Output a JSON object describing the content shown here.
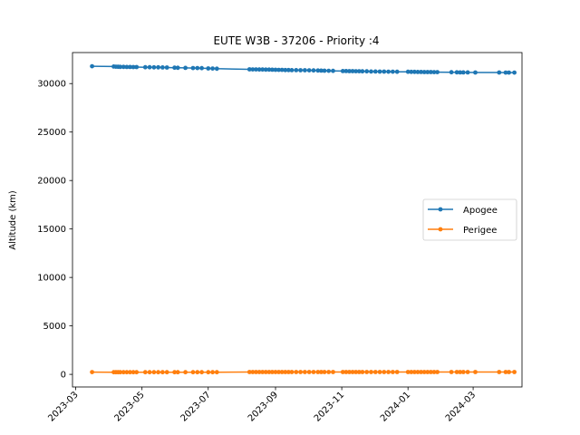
{
  "chart_data": {
    "type": "line",
    "title": "EUTE W3B - 37206 - Priority :4",
    "xlabel": "",
    "ylabel": "Altitude (km)",
    "x_ticks": [
      "2023-03",
      "2023-05",
      "2023-07",
      "2023-09",
      "2023-11",
      "2024-01",
      "2024-03"
    ],
    "y_ticks": [
      0,
      5000,
      10000,
      15000,
      20000,
      25000,
      30000
    ],
    "xlim": [
      "2023-02-26",
      "2024-04-15"
    ],
    "ylim": [
      -1300,
      33200
    ],
    "grid": false,
    "legend_position": "center-right",
    "series": [
      {
        "name": "Apogee",
        "color": "#1f77b4",
        "points": [
          [
            "2023-03-16",
            31790
          ],
          [
            "2023-04-05",
            31760
          ],
          [
            "2023-04-07",
            31740
          ],
          [
            "2023-04-09",
            31730
          ],
          [
            "2023-04-11",
            31720
          ],
          [
            "2023-04-14",
            31720
          ],
          [
            "2023-04-17",
            31710
          ],
          [
            "2023-04-20",
            31710
          ],
          [
            "2023-04-23",
            31700
          ],
          [
            "2023-04-26",
            31700
          ],
          [
            "2023-05-04",
            31690
          ],
          [
            "2023-05-08",
            31690
          ],
          [
            "2023-05-12",
            31680
          ],
          [
            "2023-05-16",
            31680
          ],
          [
            "2023-05-20",
            31670
          ],
          [
            "2023-05-24",
            31660
          ],
          [
            "2023-05-31",
            31640
          ],
          [
            "2023-06-03",
            31630
          ],
          [
            "2023-06-10",
            31620
          ],
          [
            "2023-06-17",
            31600
          ],
          [
            "2023-06-21",
            31600
          ],
          [
            "2023-06-25",
            31590
          ],
          [
            "2023-07-01",
            31560
          ],
          [
            "2023-07-05",
            31550
          ],
          [
            "2023-07-09",
            31540
          ],
          [
            "2023-08-08",
            31470
          ],
          [
            "2023-08-11",
            31460
          ],
          [
            "2023-08-14",
            31460
          ],
          [
            "2023-08-17",
            31450
          ],
          [
            "2023-08-20",
            31450
          ],
          [
            "2023-08-23",
            31440
          ],
          [
            "2023-08-26",
            31440
          ],
          [
            "2023-08-29",
            31430
          ],
          [
            "2023-09-01",
            31420
          ],
          [
            "2023-09-04",
            31410
          ],
          [
            "2023-09-07",
            31410
          ],
          [
            "2023-09-10",
            31400
          ],
          [
            "2023-09-13",
            31400
          ],
          [
            "2023-09-16",
            31390
          ],
          [
            "2023-09-20",
            31390
          ],
          [
            "2023-09-24",
            31380
          ],
          [
            "2023-09-28",
            31380
          ],
          [
            "2023-10-02",
            31370
          ],
          [
            "2023-10-06",
            31360
          ],
          [
            "2023-10-10",
            31350
          ],
          [
            "2023-10-13",
            31340
          ],
          [
            "2023-10-16",
            31330
          ],
          [
            "2023-10-20",
            31320
          ],
          [
            "2023-10-24",
            31310
          ],
          [
            "2023-11-02",
            31290
          ],
          [
            "2023-11-05",
            31290
          ],
          [
            "2023-11-08",
            31280
          ],
          [
            "2023-11-11",
            31280
          ],
          [
            "2023-11-14",
            31270
          ],
          [
            "2023-11-17",
            31270
          ],
          [
            "2023-11-20",
            31260
          ],
          [
            "2023-11-24",
            31260
          ],
          [
            "2023-11-28",
            31250
          ],
          [
            "2023-12-02",
            31250
          ],
          [
            "2023-12-06",
            31240
          ],
          [
            "2023-12-10",
            31240
          ],
          [
            "2023-12-14",
            31230
          ],
          [
            "2023-12-18",
            31230
          ],
          [
            "2023-12-22",
            31220
          ],
          [
            "2024-01-01",
            31220
          ],
          [
            "2024-01-04",
            31210
          ],
          [
            "2024-01-07",
            31210
          ],
          [
            "2024-01-10",
            31200
          ],
          [
            "2024-01-13",
            31200
          ],
          [
            "2024-01-16",
            31190
          ],
          [
            "2024-01-19",
            31190
          ],
          [
            "2024-01-22",
            31190
          ],
          [
            "2024-01-25",
            31180
          ],
          [
            "2024-01-28",
            31180
          ],
          [
            "2024-02-10",
            31170
          ],
          [
            "2024-02-15",
            31160
          ],
          [
            "2024-02-18",
            31150
          ],
          [
            "2024-02-21",
            31150
          ],
          [
            "2024-02-25",
            31150
          ],
          [
            "2024-03-03",
            31140
          ],
          [
            "2024-03-25",
            31140
          ],
          [
            "2024-03-31",
            31130
          ],
          [
            "2024-04-03",
            31130
          ],
          [
            "2024-04-08",
            31130
          ]
        ]
      },
      {
        "name": "Perigee",
        "color": "#ff7f0e",
        "points": [
          [
            "2023-03-16",
            230
          ],
          [
            "2023-04-05",
            220
          ],
          [
            "2023-04-07",
            220
          ],
          [
            "2023-04-09",
            220
          ],
          [
            "2023-04-11",
            220
          ],
          [
            "2023-04-14",
            220
          ],
          [
            "2023-04-17",
            220
          ],
          [
            "2023-04-20",
            220
          ],
          [
            "2023-04-23",
            220
          ],
          [
            "2023-04-26",
            220
          ],
          [
            "2023-05-04",
            220
          ],
          [
            "2023-05-08",
            220
          ],
          [
            "2023-05-12",
            220
          ],
          [
            "2023-05-16",
            220
          ],
          [
            "2023-05-20",
            220
          ],
          [
            "2023-05-24",
            220
          ],
          [
            "2023-05-31",
            220
          ],
          [
            "2023-06-03",
            220
          ],
          [
            "2023-06-10",
            220
          ],
          [
            "2023-06-17",
            220
          ],
          [
            "2023-06-21",
            220
          ],
          [
            "2023-06-25",
            220
          ],
          [
            "2023-07-01",
            220
          ],
          [
            "2023-07-05",
            220
          ],
          [
            "2023-07-09",
            220
          ],
          [
            "2023-08-08",
            240
          ],
          [
            "2023-08-11",
            240
          ],
          [
            "2023-08-14",
            240
          ],
          [
            "2023-08-17",
            240
          ],
          [
            "2023-08-20",
            240
          ],
          [
            "2023-08-23",
            240
          ],
          [
            "2023-08-26",
            240
          ],
          [
            "2023-08-29",
            240
          ],
          [
            "2023-09-01",
            240
          ],
          [
            "2023-09-04",
            240
          ],
          [
            "2023-09-07",
            240
          ],
          [
            "2023-09-10",
            240
          ],
          [
            "2023-09-13",
            240
          ],
          [
            "2023-09-16",
            240
          ],
          [
            "2023-09-20",
            240
          ],
          [
            "2023-09-24",
            240
          ],
          [
            "2023-09-28",
            240
          ],
          [
            "2023-10-02",
            240
          ],
          [
            "2023-10-06",
            240
          ],
          [
            "2023-10-10",
            240
          ],
          [
            "2023-10-13",
            240
          ],
          [
            "2023-10-16",
            240
          ],
          [
            "2023-10-20",
            240
          ],
          [
            "2023-10-24",
            240
          ],
          [
            "2023-11-02",
            240
          ],
          [
            "2023-11-05",
            240
          ],
          [
            "2023-11-08",
            240
          ],
          [
            "2023-11-11",
            240
          ],
          [
            "2023-11-14",
            240
          ],
          [
            "2023-11-17",
            240
          ],
          [
            "2023-11-20",
            240
          ],
          [
            "2023-11-24",
            240
          ],
          [
            "2023-11-28",
            240
          ],
          [
            "2023-12-02",
            240
          ],
          [
            "2023-12-06",
            240
          ],
          [
            "2023-12-10",
            240
          ],
          [
            "2023-12-14",
            240
          ],
          [
            "2023-12-18",
            240
          ],
          [
            "2023-12-22",
            240
          ],
          [
            "2024-01-01",
            240
          ],
          [
            "2024-01-04",
            240
          ],
          [
            "2024-01-07",
            240
          ],
          [
            "2024-01-10",
            240
          ],
          [
            "2024-01-13",
            240
          ],
          [
            "2024-01-16",
            240
          ],
          [
            "2024-01-19",
            240
          ],
          [
            "2024-01-22",
            240
          ],
          [
            "2024-01-25",
            240
          ],
          [
            "2024-01-28",
            240
          ],
          [
            "2024-02-10",
            240
          ],
          [
            "2024-02-15",
            240
          ],
          [
            "2024-02-18",
            240
          ],
          [
            "2024-02-21",
            240
          ],
          [
            "2024-02-25",
            240
          ],
          [
            "2024-03-03",
            240
          ],
          [
            "2024-03-25",
            240
          ],
          [
            "2024-03-31",
            240
          ],
          [
            "2024-04-03",
            240
          ],
          [
            "2024-04-08",
            240
          ]
        ]
      }
    ]
  }
}
